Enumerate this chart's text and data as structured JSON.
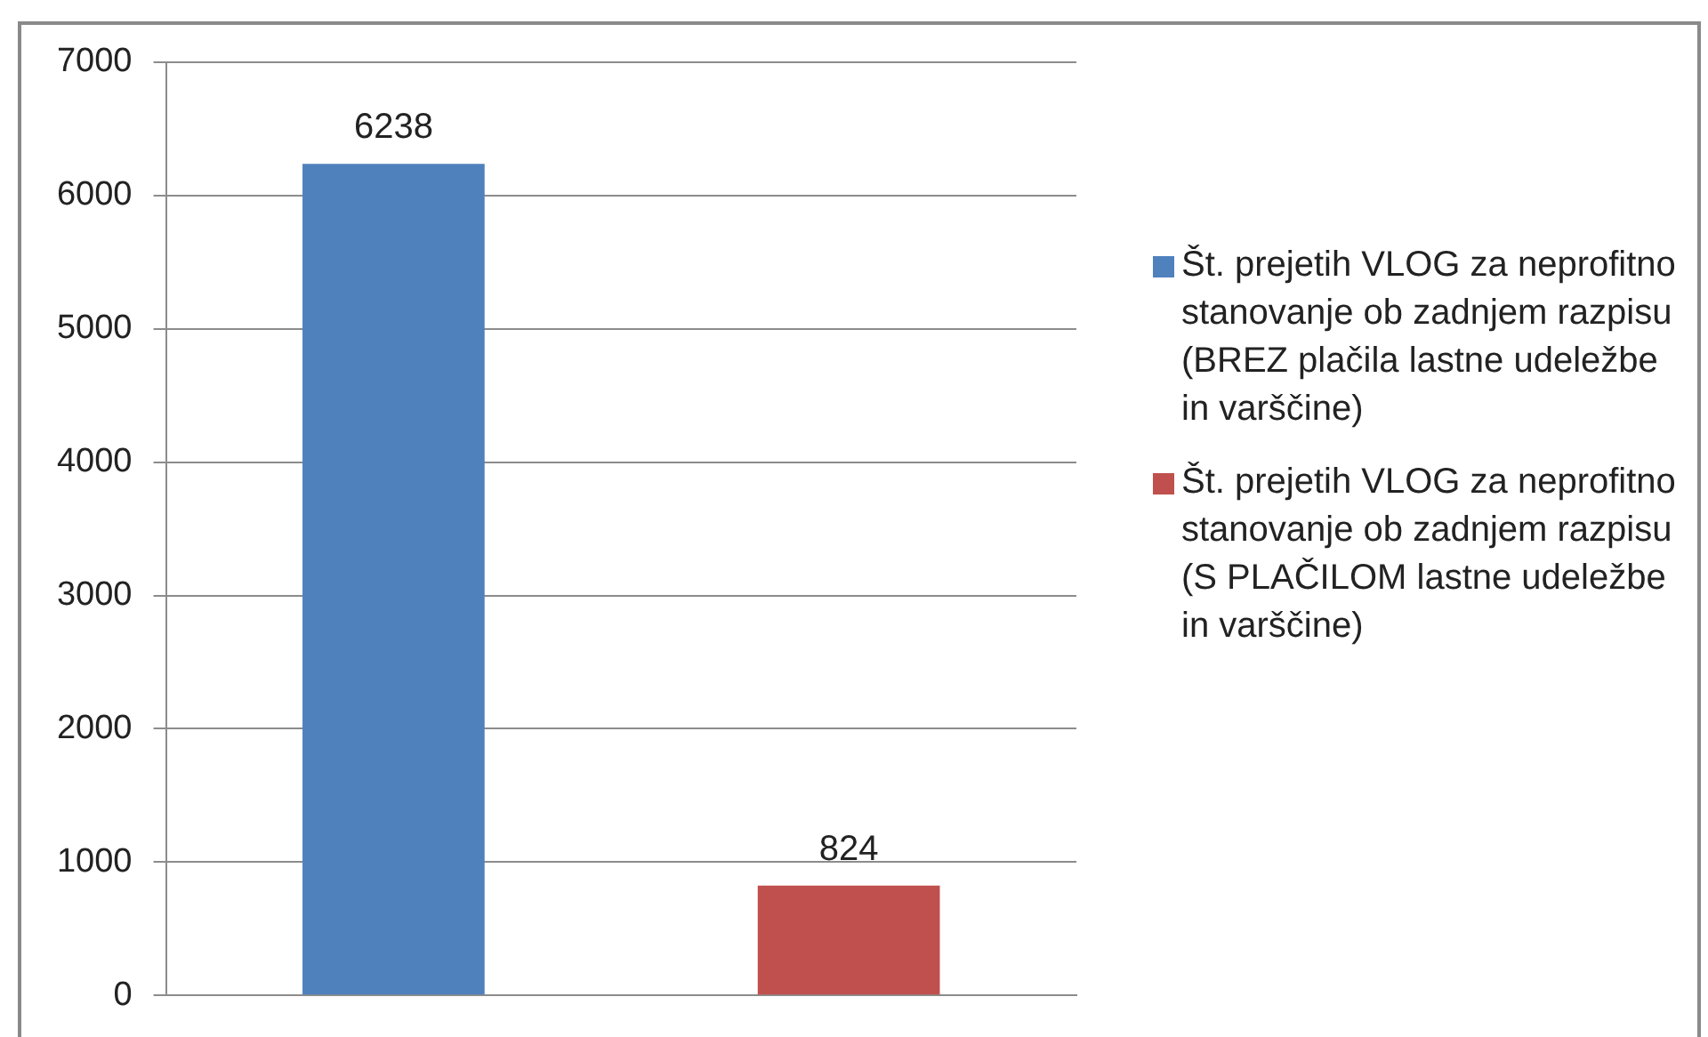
{
  "chart_data": {
    "type": "bar",
    "categories": [
      null
    ],
    "series": [
      {
        "name": "Št. prejetih VLOG za neprofitno stanovanje ob zadnjem razpisu (BREZ plačila lastne udeležbe in varščine)",
        "color": "#4f81bd",
        "values": [
          6238
        ]
      },
      {
        "name": "Št. prejetih VLOG za neprofitno stanovanje ob zadnjem razpisu (S PLAČILOM lastne udeležbe in varščine)",
        "color": "#c0504d",
        "values": [
          824
        ]
      }
    ],
    "ylim": [
      0,
      7000
    ],
    "yticks": [
      0,
      1000,
      2000,
      3000,
      4000,
      5000,
      6000,
      7000
    ],
    "grid": "y",
    "legend": "right",
    "data_labels": true
  }
}
